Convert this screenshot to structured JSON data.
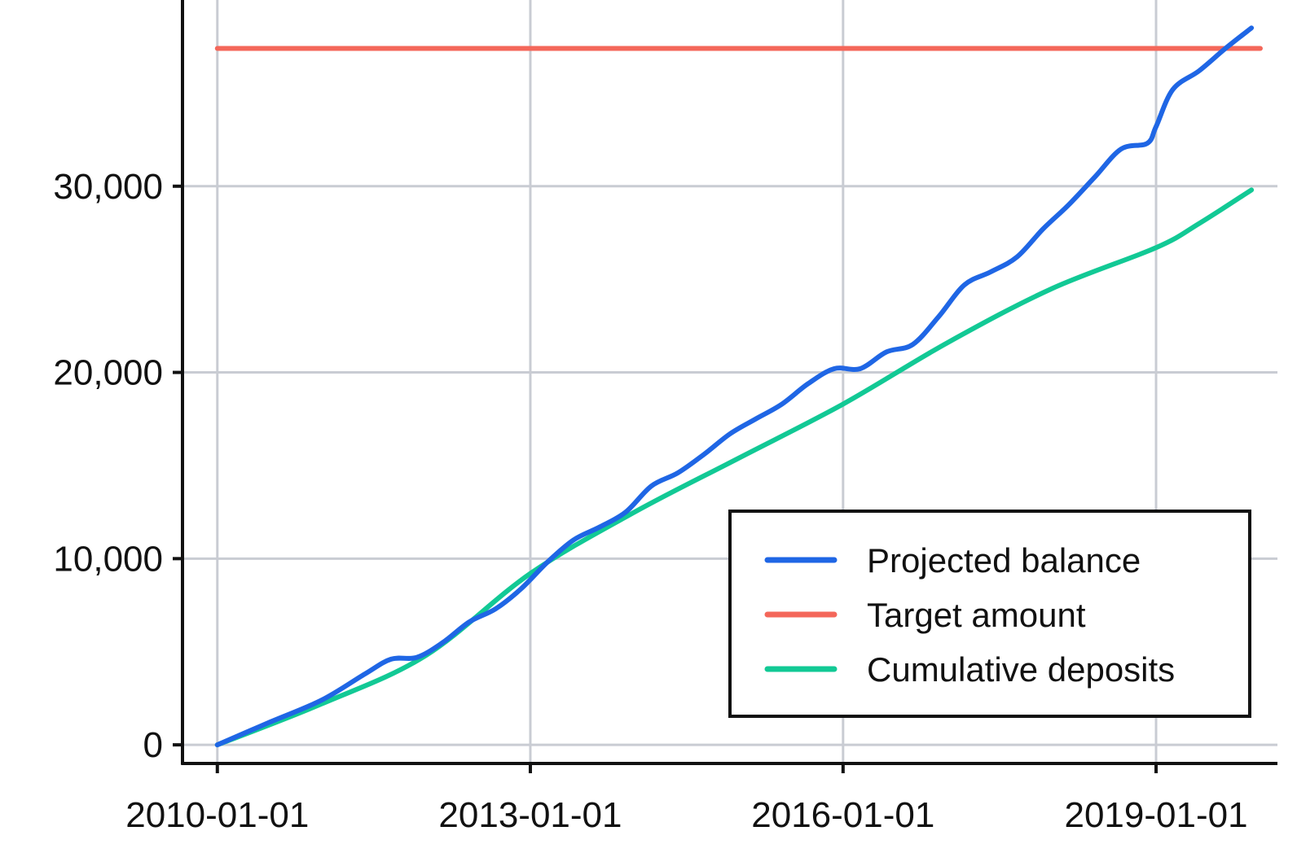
{
  "chart_data": {
    "type": "line",
    "title": "",
    "xlabel": "",
    "ylabel": "",
    "x_ticks": [
      "2010-01-01",
      "2013-01-01",
      "2016-01-01",
      "2019-01-01"
    ],
    "y_ticks": [
      0,
      10000,
      20000,
      30000
    ],
    "y_tick_labels": [
      "0",
      "10,000",
      "20,000",
      "30,000"
    ],
    "xlim": [
      "2009-09-01",
      "2020-03-01"
    ],
    "ylim": [
      -1000,
      40000
    ],
    "grid": true,
    "legend_position": "bottom-right",
    "series": [
      {
        "name": "Projected balance",
        "color": "#1f66e5",
        "points": [
          [
            "2010-01-01",
            0
          ],
          [
            "2010-07-01",
            1200
          ],
          [
            "2011-01-01",
            2400
          ],
          [
            "2011-06-01",
            3800
          ],
          [
            "2011-09-01",
            4600
          ],
          [
            "2011-12-01",
            4700
          ],
          [
            "2012-03-01",
            5500
          ],
          [
            "2012-06-01",
            6600
          ],
          [
            "2012-09-01",
            7300
          ],
          [
            "2012-12-01",
            8400
          ],
          [
            "2013-03-01",
            9800
          ],
          [
            "2013-06-01",
            11000
          ],
          [
            "2013-09-01",
            11700
          ],
          [
            "2013-12-01",
            12500
          ],
          [
            "2014-03-01",
            13900
          ],
          [
            "2014-06-01",
            14600
          ],
          [
            "2014-09-01",
            15600
          ],
          [
            "2014-12-01",
            16700
          ],
          [
            "2015-03-01",
            17500
          ],
          [
            "2015-06-01",
            18300
          ],
          [
            "2015-09-01",
            19400
          ],
          [
            "2015-12-01",
            20200
          ],
          [
            "2016-03-01",
            20200
          ],
          [
            "2016-06-01",
            21100
          ],
          [
            "2016-09-01",
            21500
          ],
          [
            "2016-12-01",
            23000
          ],
          [
            "2017-03-01",
            24700
          ],
          [
            "2017-06-01",
            25400
          ],
          [
            "2017-09-01",
            26200
          ],
          [
            "2017-12-01",
            27700
          ],
          [
            "2018-03-01",
            29000
          ],
          [
            "2018-06-01",
            30500
          ],
          [
            "2018-09-01",
            32000
          ],
          [
            "2018-12-01",
            32300
          ],
          [
            "2019-01-01",
            33200
          ],
          [
            "2019-03-01",
            35200
          ],
          [
            "2019-06-01",
            36200
          ],
          [
            "2019-09-01",
            37400
          ],
          [
            "2019-12-01",
            38500
          ]
        ]
      },
      {
        "name": "Target amount",
        "color": "#f4675a",
        "points": [
          [
            "2010-01-01",
            37400
          ],
          [
            "2020-01-01",
            37400
          ]
        ]
      },
      {
        "name": "Cumulative deposits",
        "color": "#12c995",
        "points": [
          [
            "2010-01-01",
            0
          ],
          [
            "2011-01-01",
            2200
          ],
          [
            "2012-01-01",
            4800
          ],
          [
            "2013-01-01",
            9200
          ],
          [
            "2014-01-01",
            12500
          ],
          [
            "2015-01-01",
            15400
          ],
          [
            "2016-01-01",
            18300
          ],
          [
            "2017-01-01",
            21600
          ],
          [
            "2018-01-01",
            24500
          ],
          [
            "2019-01-01",
            26700
          ],
          [
            "2019-06-01",
            28000
          ],
          [
            "2019-12-01",
            29800
          ]
        ]
      }
    ]
  }
}
